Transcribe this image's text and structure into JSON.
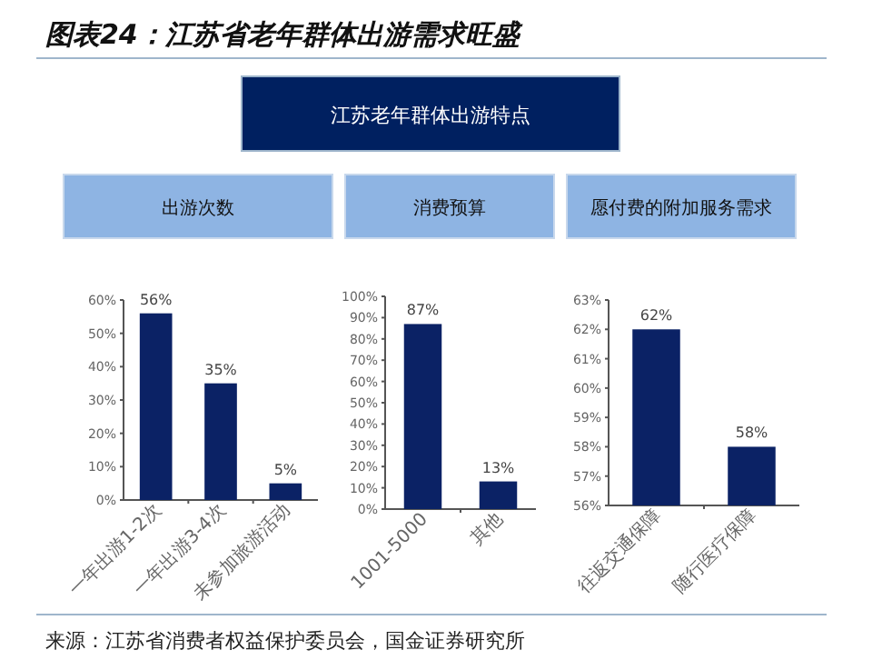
{
  "chart_data": [
    {
      "type": "other",
      "title": "图表24：江苏省老年群体出游需求旺盛",
      "subtitle": "江苏老年群体出游特点",
      "annotations": [
        "来源：江苏省消费者权益保护委员会，国金证券研究所"
      ]
    },
    {
      "type": "bar",
      "title": "出游次数",
      "categories": [
        "一年出游1-2次",
        "一年出游3-4次",
        "未参加旅游活动"
      ],
      "values": [
        56,
        35,
        5
      ],
      "value_labels": [
        "56%",
        "35%",
        "5%"
      ],
      "color": "#0b2265",
      "ylim": [
        0,
        60
      ],
      "yticks": [
        {
          "value": 0,
          "label": "0%"
        },
        {
          "value": 10,
          "label": "10%"
        },
        {
          "value": 20,
          "label": "20%"
        },
        {
          "value": 30,
          "label": "30%"
        },
        {
          "value": 40,
          "label": "40%"
        },
        {
          "value": 50,
          "label": "50%"
        },
        {
          "value": 60,
          "label": "60%"
        }
      ],
      "grid": false
    },
    {
      "type": "bar",
      "title": "消费预算",
      "categories": [
        "1001-5000",
        "其他"
      ],
      "values": [
        87,
        13
      ],
      "value_labels": [
        "87%",
        "13%"
      ],
      "color": "#0b2265",
      "ylim": [
        0,
        100
      ],
      "yticks": [
        {
          "value": 0,
          "label": "0%"
        },
        {
          "value": 10,
          "label": "10%"
        },
        {
          "value": 20,
          "label": "20%"
        },
        {
          "value": 30,
          "label": "30%"
        },
        {
          "value": 40,
          "label": "40%"
        },
        {
          "value": 50,
          "label": "50%"
        },
        {
          "value": 60,
          "label": "60%"
        },
        {
          "value": 70,
          "label": "70%"
        },
        {
          "value": 80,
          "label": "80%"
        },
        {
          "value": 90,
          "label": "90%"
        },
        {
          "value": 100,
          "label": "100%"
        }
      ],
      "grid": false
    },
    {
      "type": "bar",
      "title": "愿付费的附加服务需求",
      "categories": [
        "往返交通保障",
        "随行医疗保障"
      ],
      "values": [
        62,
        58
      ],
      "value_labels": [
        "62%",
        "58%"
      ],
      "color": "#0b2265",
      "ylim": [
        56,
        63
      ],
      "yticks": [
        {
          "value": 56,
          "label": "56%"
        },
        {
          "value": 57,
          "label": "57%"
        },
        {
          "value": 58,
          "label": "58%"
        },
        {
          "value": 59,
          "label": "59%"
        },
        {
          "value": 60,
          "label": "60%"
        },
        {
          "value": 61,
          "label": "61%"
        },
        {
          "value": 62,
          "label": "62%"
        },
        {
          "value": 63,
          "label": "63%"
        }
      ],
      "grid": false
    }
  ]
}
